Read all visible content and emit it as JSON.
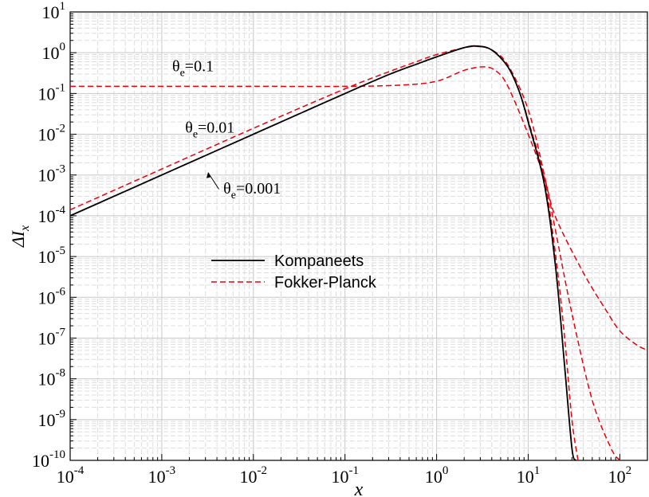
{
  "chart_data": {
    "type": "line",
    "xlabel": "x",
    "ylabel": "ΔI",
    "ylabel_sub": "x",
    "x_scale": "log",
    "y_scale": "log",
    "xlim": [
      0.0001,
      200
    ],
    "ylim": [
      1e-10,
      10
    ],
    "x_ticks": [
      {
        "mant": "10",
        "exp": "-4",
        "value": 0.0001
      },
      {
        "mant": "10",
        "exp": "-3",
        "value": 0.001
      },
      {
        "mant": "10",
        "exp": "-2",
        "value": 0.01
      },
      {
        "mant": "10",
        "exp": "-1",
        "value": 0.1
      },
      {
        "mant": "10",
        "exp": "0",
        "value": 1
      },
      {
        "mant": "10",
        "exp": "1",
        "value": 10
      },
      {
        "mant": "10",
        "exp": "2",
        "value": 100
      }
    ],
    "y_ticks": [
      {
        "mant": "10",
        "exp": "-10",
        "value": 1e-10
      },
      {
        "mant": "10",
        "exp": "-9",
        "value": 1e-09
      },
      {
        "mant": "10",
        "exp": "-8",
        "value": 1e-08
      },
      {
        "mant": "10",
        "exp": "-7",
        "value": 1e-07
      },
      {
        "mant": "10",
        "exp": "-6",
        "value": 1e-06
      },
      {
        "mant": "10",
        "exp": "-5",
        "value": 1e-05
      },
      {
        "mant": "10",
        "exp": "-4",
        "value": 0.0001
      },
      {
        "mant": "10",
        "exp": "-3",
        "value": 0.001
      },
      {
        "mant": "10",
        "exp": "-2",
        "value": 0.01
      },
      {
        "mant": "10",
        "exp": "-1",
        "value": 0.1
      },
      {
        "mant": "10",
        "exp": "0",
        "value": 1
      },
      {
        "mant": "10",
        "exp": "1",
        "value": 10
      }
    ],
    "grid": true,
    "legend_position": "center-left",
    "series": [
      {
        "name": "Kompaneets",
        "color": "#000000",
        "dash": "solid",
        "points": [
          [
            0.0001,
            0.0001
          ],
          [
            0.001,
            0.001
          ],
          [
            0.01,
            0.01
          ],
          [
            0.1,
            0.1
          ],
          [
            0.3,
            0.29
          ],
          [
            0.6,
            0.52
          ],
          [
            1,
            0.79
          ],
          [
            2,
            1.33
          ],
          [
            2.8,
            1.45
          ],
          [
            4,
            1.17
          ],
          [
            6,
            0.45
          ],
          [
            8,
            0.11
          ],
          [
            10,
            0.02
          ],
          [
            15,
            0.0006
          ],
          [
            20,
            5e-06
          ],
          [
            25,
            2e-08
          ],
          [
            30,
            2e-10
          ],
          [
            33,
            1e-10
          ]
        ]
      },
      {
        "name": "Fokker-Planck",
        "color": "#e8000b",
        "dash": "dashed",
        "label": "θe=0.001",
        "points": [
          [
            0.0001,
            0.0001
          ],
          [
            0.001,
            0.001
          ],
          [
            0.01,
            0.01
          ],
          [
            0.1,
            0.1
          ],
          [
            0.3,
            0.29
          ],
          [
            0.6,
            0.52
          ],
          [
            1,
            0.79
          ],
          [
            2,
            1.33
          ],
          [
            2.8,
            1.44
          ],
          [
            4,
            1.16
          ],
          [
            6,
            0.45
          ],
          [
            8,
            0.11
          ],
          [
            10,
            0.022
          ],
          [
            15,
            0.0008
          ],
          [
            20,
            1e-05
          ],
          [
            25,
            1e-07
          ],
          [
            30,
            1e-09
          ],
          [
            35,
            1e-10
          ]
        ]
      },
      {
        "name": "Fokker-Planck",
        "color": "#e8000b",
        "dash": "dashed",
        "label": "θe=0.01",
        "points": [
          [
            0.0001,
            0.00014
          ],
          [
            0.001,
            0.0014
          ],
          [
            0.01,
            0.014
          ],
          [
            0.1,
            0.13
          ],
          [
            0.3,
            0.34
          ],
          [
            0.6,
            0.6
          ],
          [
            1,
            0.9
          ],
          [
            2,
            1.32
          ],
          [
            2.8,
            1.42
          ],
          [
            4,
            1.17
          ],
          [
            6,
            0.5
          ],
          [
            10,
            0.04
          ],
          [
            15,
            0.001
          ],
          [
            20,
            4e-05
          ],
          [
            30,
            4e-07
          ],
          [
            50,
            3e-09
          ],
          [
            80,
            2e-10
          ],
          [
            100,
            1e-10
          ]
        ]
      },
      {
        "name": "Fokker-Planck",
        "color": "#e8000b",
        "dash": "dashed",
        "label": "θe=0.1",
        "points": [
          [
            0.0001,
            0.15
          ],
          [
            0.001,
            0.15
          ],
          [
            0.01,
            0.15
          ],
          [
            0.1,
            0.15
          ],
          [
            0.4,
            0.16
          ],
          [
            1,
            0.2
          ],
          [
            2,
            0.37
          ],
          [
            3.3,
            0.45
          ],
          [
            4.5,
            0.35
          ],
          [
            6,
            0.15
          ],
          [
            10,
            0.01
          ],
          [
            15,
            0.00085
          ],
          [
            20,
            9e-05
          ],
          [
            40,
            4e-06
          ],
          [
            70,
            5e-07
          ],
          [
            100,
            1.5e-07
          ],
          [
            150,
            7e-08
          ],
          [
            200,
            5e-08
          ]
        ]
      }
    ],
    "annotations": [
      {
        "base": "θ",
        "sub": "e",
        "rest": "=0.1",
        "x": 0.0013,
        "y": 0.35
      },
      {
        "base": "θ",
        "sub": "e",
        "rest": "=0.01",
        "x": 0.0018,
        "y": 0.011
      },
      {
        "base": "θ",
        "sub": "e",
        "rest": "=0.001",
        "x": 0.0047,
        "y": 0.00035
      }
    ],
    "legend": [
      {
        "label": "Kompaneets",
        "color": "#000000",
        "dash": "solid"
      },
      {
        "label": "Fokker-Planck",
        "color": "#e8000b",
        "dash": "dashed"
      }
    ]
  }
}
